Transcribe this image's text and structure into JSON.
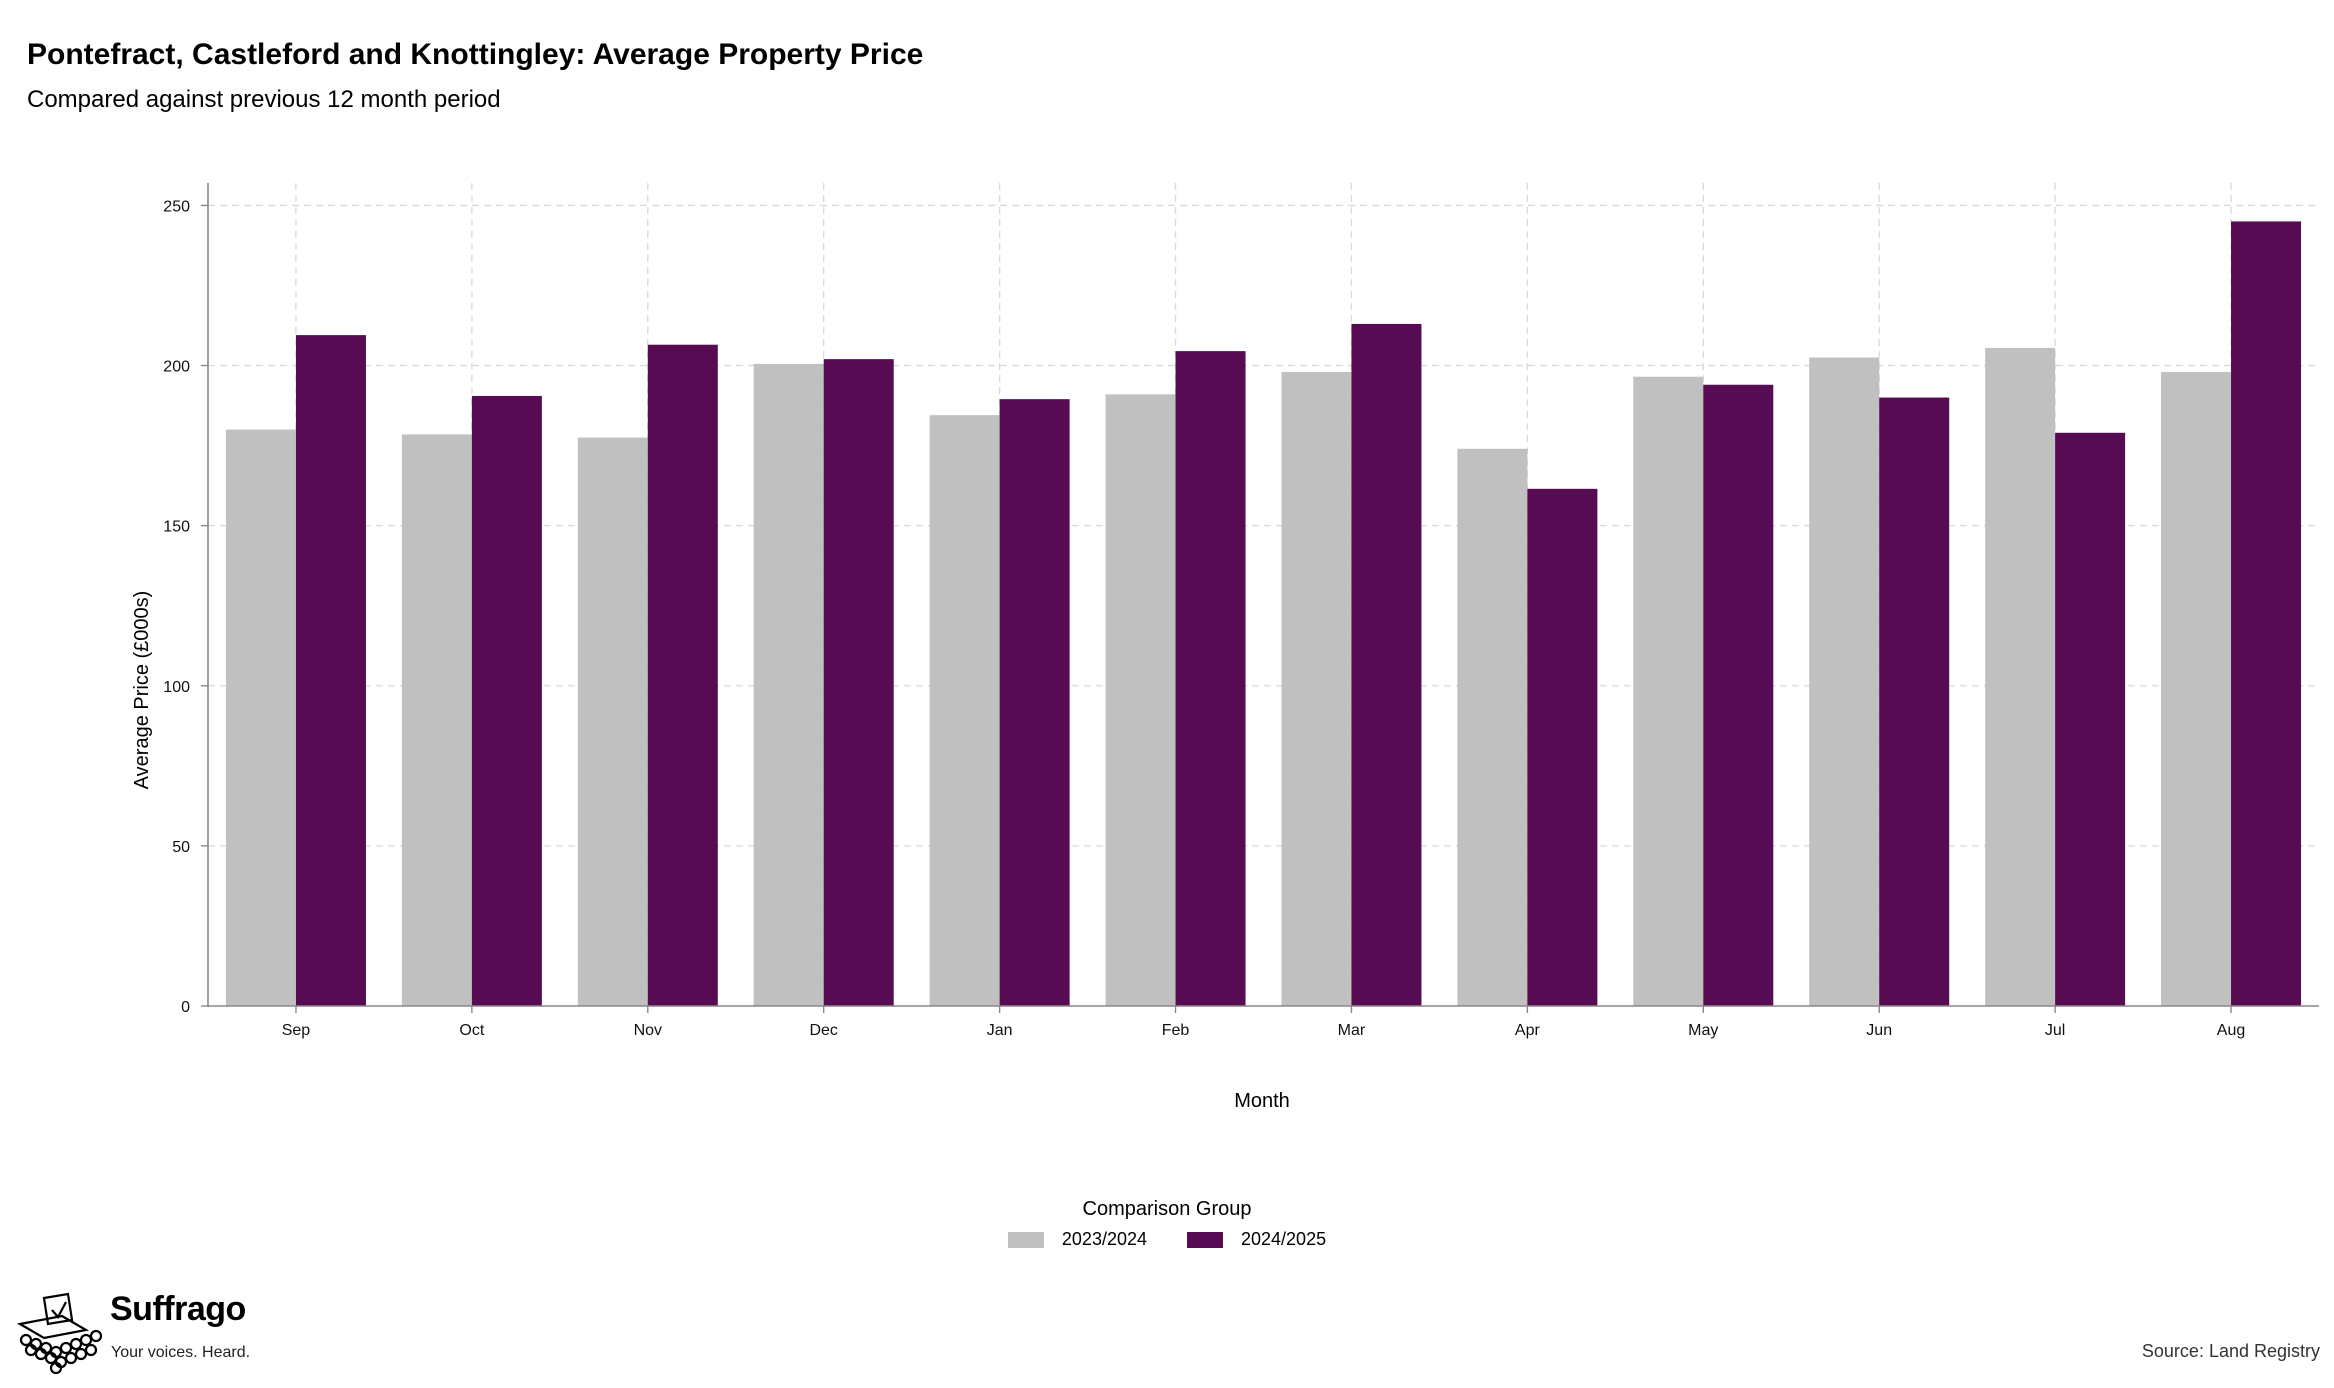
{
  "header": {
    "title": "Pontefract, Castleford and Knottingley: Average Property Price",
    "subtitle": "Compared against previous 12 month period"
  },
  "chart_data": {
    "type": "bar",
    "categories": [
      "Sep",
      "Oct",
      "Nov",
      "Dec",
      "Jan",
      "Feb",
      "Mar",
      "Apr",
      "May",
      "Jun",
      "Jul",
      "Aug"
    ],
    "series": [
      {
        "name": "2023/2024",
        "color": "#c0c0c0",
        "values": [
          180,
          178.5,
          177.5,
          200.5,
          184.5,
          191,
          198,
          174,
          196.5,
          202.5,
          205.5,
          198
        ]
      },
      {
        "name": "2024/2025",
        "color": "#560b52",
        "values": [
          209.5,
          190.5,
          206.5,
          202,
          189.5,
          204.5,
          213,
          161.5,
          194,
          190,
          179,
          245
        ]
      }
    ],
    "xlabel": "Month",
    "ylabel": "Average Price (£000s)",
    "ylim": [
      0,
      257
    ],
    "yticks": [
      0,
      50,
      100,
      150,
      200,
      250
    ],
    "grid": true,
    "legend": {
      "title": "Comparison Group",
      "placement": "bottom-center"
    }
  },
  "brand": {
    "name": "Suffrago",
    "tagline": "Your voices. Heard."
  },
  "source": "Source: Land Registry"
}
